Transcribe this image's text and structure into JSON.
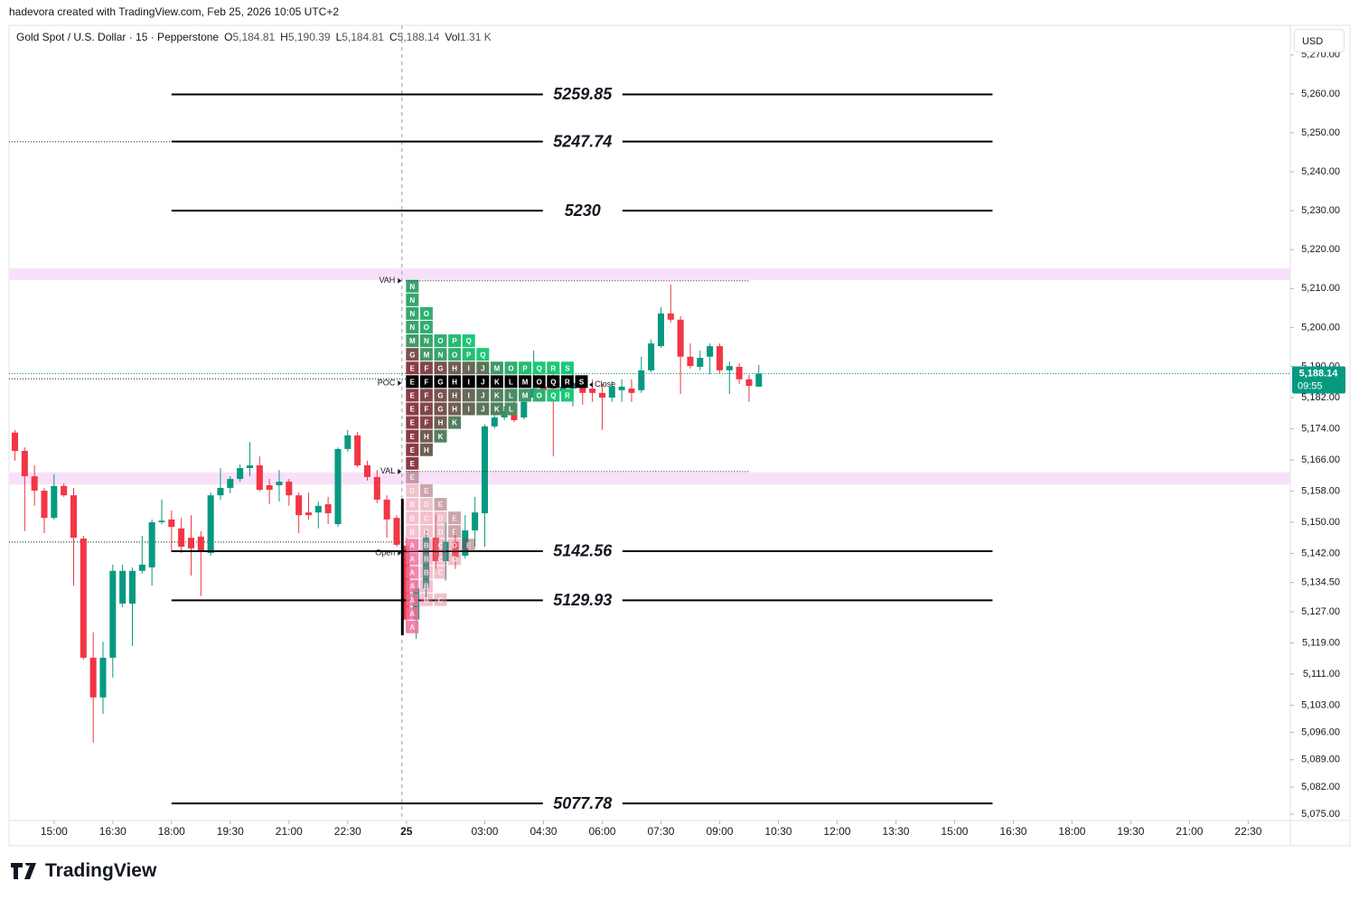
{
  "header": {
    "credit": "hadevora created with TradingView.com, Feb 25, 2026 10:05 UTC+2",
    "symbol": "Gold Spot / U.S. Dollar · 15 · Pepperstone",
    "ohlc": [
      {
        "key": "O",
        "value": "5,184.81"
      },
      {
        "key": "H",
        "value": "5,190.39"
      },
      {
        "key": "L",
        "value": "5,184.81"
      },
      {
        "key": "C",
        "value": "5,188.14"
      },
      {
        "key": "Vol",
        "value": "1.31 K"
      }
    ],
    "currency": "USD"
  },
  "footer": {
    "brand": "TradingView"
  },
  "chart_data": {
    "type": "candlestick",
    "up_color": "#089981",
    "down_color": "#f23645",
    "xlim": [
      -0.6,
      130.3
    ],
    "ylim": [
      5073.4,
      5277.6
    ],
    "xticks": [
      {
        "value": 4,
        "label": "15:00"
      },
      {
        "value": 10,
        "label": "16:30"
      },
      {
        "value": 16,
        "label": "18:00"
      },
      {
        "value": 22,
        "label": "19:30"
      },
      {
        "value": 28,
        "label": "21:00"
      },
      {
        "value": 34,
        "label": "22:30"
      },
      {
        "value": 40,
        "label": "25"
      },
      {
        "value": 48,
        "label": "03:00"
      },
      {
        "value": 54,
        "label": "04:30"
      },
      {
        "value": 60,
        "label": "06:00"
      },
      {
        "value": 66,
        "label": "07:30"
      },
      {
        "value": 72,
        "label": "09:00"
      },
      {
        "value": 78,
        "label": "10:30"
      },
      {
        "value": 84,
        "label": "12:00"
      },
      {
        "value": 90,
        "label": "13:30"
      },
      {
        "value": 96,
        "label": "15:00"
      },
      {
        "value": 102,
        "label": "16:30"
      },
      {
        "value": 108,
        "label": "18:00"
      },
      {
        "value": 114,
        "label": "19:30"
      },
      {
        "value": 120,
        "label": "21:00"
      },
      {
        "value": 126,
        "label": "22:30"
      }
    ],
    "yticks": [
      {
        "value": 5270,
        "label": "5,270.00"
      },
      {
        "value": 5260,
        "label": "5,260.00"
      },
      {
        "value": 5250,
        "label": "5,250.00"
      },
      {
        "value": 5240,
        "label": "5,240.00"
      },
      {
        "value": 5230,
        "label": "5,230.00"
      },
      {
        "value": 5220,
        "label": "5,220.00"
      },
      {
        "value": 5210,
        "label": "5,210.00"
      },
      {
        "value": 5200,
        "label": "5,200.00"
      },
      {
        "value": 5190,
        "label": "5,190.00"
      },
      {
        "value": 5182,
        "label": "5,182.00"
      },
      {
        "value": 5174,
        "label": "5,174.00"
      },
      {
        "value": 5166,
        "label": "5,166.00"
      },
      {
        "value": 5158,
        "label": "5,158.00"
      },
      {
        "value": 5150,
        "label": "5,150.00"
      },
      {
        "value": 5142,
        "label": "5,142.00"
      },
      {
        "value": 5134.5,
        "label": "5,134.50"
      },
      {
        "value": 5127,
        "label": "5,127.00"
      },
      {
        "value": 5119,
        "label": "5,119.00"
      },
      {
        "value": 5111,
        "label": "5,111.00"
      },
      {
        "value": 5103,
        "label": "5,103.00"
      },
      {
        "value": 5096,
        "label": "5,096.00"
      },
      {
        "value": 5089,
        "label": "5,089.00"
      },
      {
        "value": 5082,
        "label": "5,082.00"
      },
      {
        "value": 5075,
        "label": "5,075.00"
      }
    ],
    "open": [
      5173.0,
      5168.3,
      5161.8,
      5158.1,
      5151.1,
      5159.3,
      5156.9,
      5145.8,
      5115.2,
      5105.0,
      5115.2,
      5129.1,
      5129.1,
      5137.5,
      5138.4,
      5150.0,
      5150.7,
      5148.4,
      5146.0,
      5146.3,
      5142.1,
      5156.9,
      5158.8,
      5161.1,
      5163.9,
      5164.6,
      5159.5,
      5159.5,
      5160.4,
      5156.9,
      5152.5,
      5152.5,
      5154.6,
      5149.5,
      5168.8,
      5172.3,
      5164.6,
      5161.6,
      5155.8,
      5151.1,
      5144.0,
      5125.0,
      5133.0,
      5146.0,
      5140.0,
      5145.0,
      5141.4,
      5147.9,
      5152.3,
      5174.6,
      5176.9,
      5179.7,
      5176.9,
      5182.0,
      5184.8,
      5185.5,
      5183.6,
      5184.3,
      5185.5,
      5184.3,
      5183.2,
      5182.0,
      5183.9,
      5184.3,
      5183.9,
      5189.0,
      5195.2,
      5203.6,
      5202.0,
      5192.5,
      5189.9,
      5192.5,
      5195.2,
      5189.0,
      5189.9,
      5186.7,
      5184.81
    ],
    "high": [
      5173.7,
      5169.2,
      5164.6,
      5158.8,
      5162.3,
      5160.0,
      5158.8,
      5146.5,
      5121.7,
      5119.3,
      5139.1,
      5139.1,
      5138.4,
      5146.5,
      5150.7,
      5155.8,
      5153.0,
      5151.1,
      5151.8,
      5147.7,
      5157.6,
      5163.9,
      5161.8,
      5164.8,
      5170.6,
      5166.9,
      5161.1,
      5163.4,
      5161.1,
      5157.6,
      5157.6,
      5155.3,
      5156.5,
      5169.2,
      5173.7,
      5173.2,
      5165.8,
      5163.4,
      5156.9,
      5151.8,
      5146.0,
      5135.0,
      5148.0,
      5152.0,
      5150.0,
      5148.0,
      5151.8,
      5156.5,
      5175.1,
      5177.4,
      5179.7,
      5180.9,
      5182.0,
      5194.1,
      5186.7,
      5189.0,
      5186.7,
      5189.0,
      5186.7,
      5186.7,
      5185.5,
      5186.2,
      5186.7,
      5186.7,
      5192.5,
      5196.9,
      5205.2,
      5211.0,
      5202.9,
      5195.9,
      5194.1,
      5195.9,
      5195.9,
      5191.3,
      5190.8,
      5187.8,
      5190.39
    ],
    "low": [
      5165.8,
      5147.7,
      5154.2,
      5147.2,
      5150.7,
      5156.5,
      5133.7,
      5114.7,
      5093.4,
      5100.8,
      5110.1,
      5128.2,
      5118.2,
      5136.8,
      5133.7,
      5149.5,
      5142.3,
      5142.1,
      5136.3,
      5131.0,
      5141.4,
      5155.8,
      5157.4,
      5160.4,
      5161.8,
      5157.9,
      5154.6,
      5155.3,
      5154.2,
      5147.2,
      5150.7,
      5148.4,
      5149.5,
      5148.8,
      5168.1,
      5164.1,
      5160.7,
      5154.9,
      5146.0,
      5143.7,
      5122.0,
      5120.0,
      5130.0,
      5138.0,
      5135.0,
      5138.0,
      5140.7,
      5143.7,
      5143.7,
      5174.1,
      5176.2,
      5175.7,
      5176.4,
      5180.9,
      5182.9,
      5166.9,
      5182.0,
      5179.7,
      5180.2,
      5180.9,
      5173.7,
      5180.9,
      5180.9,
      5180.9,
      5183.2,
      5188.5,
      5194.8,
      5201.3,
      5182.9,
      5189.4,
      5189.0,
      5188.0,
      5188.3,
      5182.9,
      5185.5,
      5180.9,
      5184.81
    ],
    "close": [
      5168.3,
      5161.8,
      5158.1,
      5151.1,
      5159.3,
      5156.9,
      5146.0,
      5115.2,
      5105.0,
      5115.2,
      5137.5,
      5137.5,
      5137.5,
      5139.1,
      5150.0,
      5150.4,
      5148.8,
      5143.7,
      5143.3,
      5142.6,
      5156.9,
      5158.8,
      5161.1,
      5163.9,
      5164.6,
      5158.3,
      5158.3,
      5160.4,
      5156.9,
      5151.8,
      5151.8,
      5154.2,
      5152.3,
      5168.8,
      5172.3,
      5164.6,
      5161.6,
      5155.8,
      5150.7,
      5144.2,
      5125.0,
      5133.0,
      5146.0,
      5140.0,
      5145.0,
      5141.0,
      5147.9,
      5152.5,
      5174.6,
      5176.9,
      5178.5,
      5176.2,
      5180.9,
      5184.3,
      5183.9,
      5184.3,
      5184.8,
      5185.7,
      5183.2,
      5183.2,
      5182.0,
      5184.8,
      5184.8,
      5183.2,
      5189.0,
      5195.9,
      5203.6,
      5202.0,
      5192.5,
      5190.1,
      5192.2,
      5195.2,
      5189.0,
      5190.1,
      5186.7,
      5185.0,
      5188.14
    ],
    "levels": [
      5259.85,
      5247.74,
      5230,
      5142.56,
      5129.93,
      5077.78
    ],
    "dotted_levels": [
      5247.7,
      5186.8,
      5144.9
    ],
    "price_label": {
      "value": 5188.14,
      "label": "5,188.14"
    },
    "countdown": "09:55",
    "profile": {
      "vah": 5212.0,
      "val": 5163.0,
      "poc": 5185.7,
      "open": 5142.1,
      "close": 5185.3,
      "vah_zone": [
        5212.2,
        5215.2
      ],
      "val_zone": [
        5159.7,
        5162.8
      ],
      "ib": [
        5121.0,
        5156.0
      ],
      "labels": {
        "vah": "VAH",
        "poc": "POC",
        "val": "VAL",
        "open": "Open",
        "close": "Close"
      },
      "top": 5210.6,
      "row_size": 3.5,
      "rows": [
        [
          "N"
        ],
        [
          "N"
        ],
        [
          "N",
          "O"
        ],
        [
          "N",
          "O"
        ],
        [
          "M",
          "N",
          "O",
          "P",
          "Q"
        ],
        [
          "G",
          "M",
          "N",
          "O",
          "P",
          "Q"
        ],
        [
          "E",
          "F",
          "G",
          "H",
          "I",
          "J",
          "M",
          "O",
          "P",
          "Q",
          "R",
          "S"
        ],
        [
          "E",
          "F",
          "G",
          "H",
          "I",
          "J",
          "K",
          "L",
          "M",
          "O",
          "Q",
          "R",
          "S"
        ],
        [
          "E",
          "F",
          "G",
          "H",
          "I",
          "J",
          "K",
          "L",
          "M",
          "O",
          "Q",
          "R"
        ],
        [
          "E",
          "F",
          "G",
          "H",
          "I",
          "J",
          "K",
          "L"
        ],
        [
          "E",
          "F",
          "H",
          "K"
        ],
        [
          "E",
          "H",
          "K"
        ],
        [
          "E",
          "H"
        ],
        [
          "E"
        ],
        [
          "E"
        ],
        [
          "D",
          "E"
        ],
        [
          "B",
          "D",
          "E"
        ],
        [
          "B",
          "C",
          "D",
          "E"
        ],
        [
          "B",
          "C",
          "D",
          "E"
        ],
        [
          "A",
          "B",
          "C",
          "D",
          "E"
        ],
        [
          "A",
          "B",
          "C",
          "D"
        ],
        [
          "A",
          "B",
          "C"
        ],
        [
          "A",
          "B"
        ],
        [
          "A",
          "B",
          "C"
        ],
        [
          "A"
        ],
        [
          "A"
        ]
      ]
    }
  }
}
